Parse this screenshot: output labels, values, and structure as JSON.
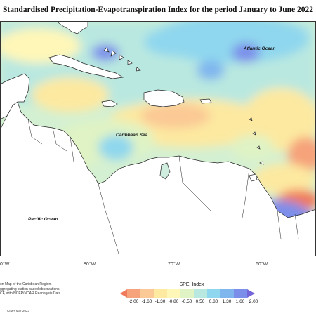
{
  "title": "Standardised Precipitation-Evapotranspiration Index for the period January to June 2022",
  "labels": {
    "atlantic": "Atlantic Ocean",
    "caribbean": "Caribbean Sea",
    "pacific": "Pacific Ocean"
  },
  "longitudes": [
    "0°W",
    "80°W",
    "70°W",
    "60°W"
  ],
  "source_text": [
    "on Map of the Caribbean Region.",
    "ggregating station based observations,",
    "CF, with NCEP/NCAR Reanalysis Data."
  ],
  "credit": "CIMH Mar-2023",
  "legend": {
    "title": "SPEI Index",
    "ticks": [
      "-2.00",
      "-1.60",
      "-1.30",
      "-0.80",
      "-0.50",
      "0.50",
      "0.80",
      "1.30",
      "1.60",
      "2.00"
    ],
    "colors": [
      "#f07a5c",
      "#f6a27a",
      "#fbc995",
      "#fde9a0",
      "#fff7b8",
      "#dff3c4",
      "#b9e8e0",
      "#8fd7ee",
      "#7fb6ee",
      "#7b8eea",
      "#7466d8"
    ]
  }
}
